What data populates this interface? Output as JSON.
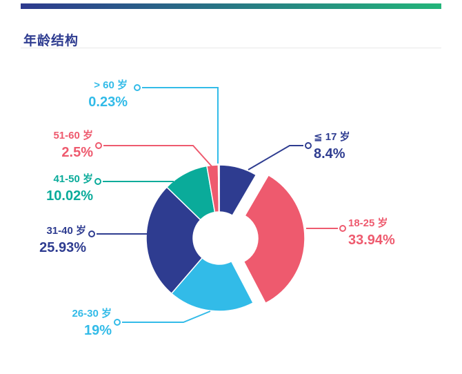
{
  "header": {
    "title": "年龄结构"
  },
  "theme": {
    "gradient_start": "#2d3a8e",
    "gradient_end": "#23b57a",
    "title_color": "#2e3c90",
    "background": "#ffffff"
  },
  "chart_data": {
    "type": "pie",
    "subtype": "donut",
    "title": "年龄结构",
    "legend": "none",
    "label_style": "callout-lines-with-circle-markers",
    "inner_radius_ratio": 0.36,
    "slices": [
      {
        "label": "≦ 17 岁",
        "value": 8.4,
        "percent": "8.4%",
        "color": "#2e3c90",
        "exploded": false
      },
      {
        "label": "18-25 岁",
        "value": 33.94,
        "percent": "33.94%",
        "color": "#ee5a6e",
        "exploded": true
      },
      {
        "label": "26-30 岁",
        "value": 19,
        "percent": "19%",
        "color": "#32bbe8",
        "exploded": false
      },
      {
        "label": "31-40 岁",
        "value": 25.93,
        "percent": "25.93%",
        "color": "#2e3c90",
        "exploded": false
      },
      {
        "label": "41-50 岁",
        "value": 10.02,
        "percent": "10.02%",
        "color": "#0aab9a",
        "exploded": false
      },
      {
        "label": "51-60 岁",
        "value": 2.5,
        "percent": "2.5%",
        "color": "#ee5a6e",
        "exploded": false
      },
      {
        "label": "> 60 岁",
        "value": 0.23,
        "percent": "0.23%",
        "color": "#32bbe8",
        "exploded": false
      }
    ]
  }
}
